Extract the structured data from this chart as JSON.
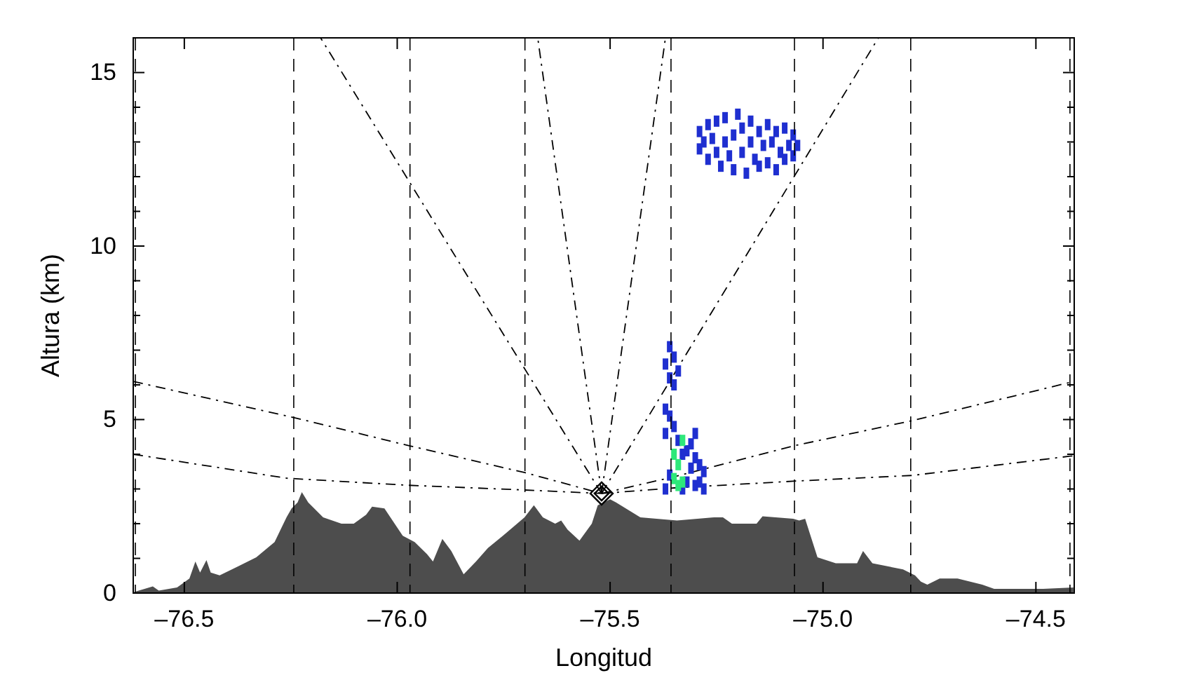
{
  "chart_data": {
    "type": "area",
    "xlabel": "Longitud",
    "ylabel": "Altura (km)",
    "xlim": [
      -76.62,
      -74.41
    ],
    "ylim": [
      0,
      16
    ],
    "xticks": [
      {
        "value": -76.5,
        "label": "–76.5"
      },
      {
        "value": -76.0,
        "label": "–76.0"
      },
      {
        "value": -75.5,
        "label": "–75.5"
      },
      {
        "value": -75.0,
        "label": "–75.0"
      },
      {
        "value": -74.5,
        "label": "–74.5"
      }
    ],
    "yticks": [
      0,
      {
        "value": 1,
        "label": null
      },
      {
        "value": 2,
        "label": null
      },
      {
        "value": 3,
        "label": null
      },
      {
        "value": 4,
        "label": null
      },
      5,
      {
        "value": 6,
        "label": null
      },
      {
        "value": 7,
        "label": null
      },
      {
        "value": 8,
        "label": null
      },
      {
        "value": 9,
        "label": null
      },
      10,
      {
        "value": 11,
        "label": null
      },
      {
        "value": 12,
        "label": null
      },
      {
        "value": 13,
        "label": null
      },
      {
        "value": 14,
        "label": null
      },
      15
    ],
    "grid": false,
    "ref_lines": [
      {
        "axis": "x",
        "value": -76.615,
        "color": "#000000",
        "line_style": "dashed"
      },
      {
        "axis": "x",
        "value": -76.243,
        "color": "#000000",
        "line_style": "dashed"
      },
      {
        "axis": "x",
        "value": -75.97,
        "color": "#000000",
        "line_style": "dashed"
      },
      {
        "axis": "x",
        "value": -75.7,
        "color": "#000000",
        "line_style": "dashed"
      },
      {
        "axis": "x",
        "value": -75.357,
        "color": "#000000",
        "line_style": "dashed"
      },
      {
        "axis": "x",
        "value": -75.067,
        "color": "#000000",
        "line_style": "dashed"
      },
      {
        "axis": "x",
        "value": -74.794,
        "color": "#000000",
        "line_style": "dashed"
      },
      {
        "axis": "x",
        "value": -74.42,
        "color": "#000000",
        "line_style": "dashed"
      }
    ],
    "series": [
      {
        "color": "#4d4d4d",
        "x": [
          -76.618,
          -76.574,
          -76.56,
          -76.517,
          -76.488,
          -76.474,
          -76.463,
          -76.448,
          -76.438,
          -76.417,
          -76.374,
          -76.331,
          -76.288,
          -76.26,
          -76.248,
          -76.234,
          -76.224,
          -76.209,
          -76.174,
          -76.131,
          -76.102,
          -76.073,
          -76.059,
          -76.03,
          -76.016,
          -75.987,
          -75.959,
          -75.93,
          -75.916,
          -75.894,
          -75.873,
          -75.844,
          -75.815,
          -75.787,
          -75.743,
          -75.701,
          -75.679,
          -75.658,
          -75.629,
          -75.615,
          -75.6,
          -75.572,
          -75.543,
          -75.529,
          -75.5,
          -75.486,
          -75.429,
          -75.343,
          -75.256,
          -75.235,
          -75.214,
          -75.156,
          -75.142,
          -75.07,
          -75.056,
          -75.042,
          -75.013,
          -74.97,
          -74.92,
          -74.906,
          -74.884,
          -74.812,
          -74.784,
          -74.77,
          -74.755,
          -74.726,
          -74.684,
          -74.626,
          -74.598,
          -74.483,
          -74.412
        ],
        "values": [
          0.03,
          0.19,
          0.07,
          0.16,
          0.42,
          0.91,
          0.59,
          0.95,
          0.59,
          0.51,
          0.77,
          1.03,
          1.47,
          2.18,
          2.44,
          2.61,
          2.91,
          2.61,
          2.18,
          2.0,
          2.0,
          2.26,
          2.49,
          2.44,
          2.18,
          1.65,
          1.47,
          1.12,
          0.91,
          1.56,
          1.21,
          0.54,
          0.91,
          1.3,
          1.74,
          2.18,
          2.53,
          2.18,
          2.0,
          2.09,
          1.83,
          1.51,
          2.0,
          2.53,
          2.7,
          2.61,
          2.18,
          2.09,
          2.18,
          2.18,
          2.0,
          2.0,
          2.21,
          2.14,
          2.09,
          2.14,
          1.03,
          0.86,
          0.86,
          1.21,
          0.86,
          0.68,
          0.51,
          0.33,
          0.24,
          0.42,
          0.42,
          0.24,
          0.12,
          0.12,
          0.16
        ]
      },
      {
        "type": "line",
        "color": "#000000",
        "line_style": "dashed",
        "x": [
          -76.62,
          -76.26,
          -75.98,
          -75.7,
          -75.52
        ],
        "values": [
          4.0,
          3.31,
          3.11,
          2.97,
          2.87
        ]
      },
      {
        "type": "line",
        "color": "#000000",
        "line_style": "dashed",
        "x": [
          -75.52,
          -75.35,
          -75.06,
          -74.79,
          -74.41
        ],
        "values": [
          2.87,
          3.03,
          3.23,
          3.39,
          3.96
        ]
      },
      {
        "type": "line",
        "color": "#000000",
        "line_style": "dashed",
        "x": [
          -76.62,
          -76.24,
          -75.97,
          -75.7,
          -75.52
        ],
        "values": [
          6.1,
          5.05,
          4.24,
          3.47,
          2.87
        ]
      },
      {
        "type": "line",
        "color": "#000000",
        "line_style": "dashed",
        "x": [
          -75.52,
          -75.35,
          -75.07,
          -74.79,
          -74.41
        ],
        "values": [
          2.87,
          3.35,
          4.24,
          4.97,
          6.1
        ]
      },
      {
        "type": "line",
        "color": "#000000",
        "line_style": "dashed",
        "x": [
          -75.52,
          -76.18
        ],
        "values": [
          2.87,
          16
        ]
      },
      {
        "type": "line",
        "color": "#000000",
        "line_style": "dashed",
        "x": [
          -75.52,
          -75.67
        ],
        "values": [
          2.87,
          16
        ]
      },
      {
        "type": "line",
        "color": "#000000",
        "line_style": "dashed",
        "x": [
          -75.52,
          -75.37
        ],
        "values": [
          2.87,
          16
        ]
      },
      {
        "type": "line",
        "color": "#000000",
        "line_style": "dashed",
        "x": [
          -75.52,
          -74.87
        ],
        "values": [
          2.87,
          16
        ]
      },
      {
        "type": "scatter",
        "marker": "square",
        "color": "#1f2fd0",
        "x": [
          -75.29,
          -75.29,
          -75.28,
          -75.27,
          -75.27,
          -75.26,
          -75.25,
          -75.25,
          -75.24,
          -75.23,
          -75.23,
          -75.22,
          -75.21,
          -75.21,
          -75.2,
          -75.19,
          -75.19,
          -75.18,
          -75.17,
          -75.17,
          -75.16,
          -75.15,
          -75.15,
          -75.14,
          -75.13,
          -75.13,
          -75.12,
          -75.11,
          -75.11,
          -75.1,
          -75.09,
          -75.09,
          -75.08,
          -75.07,
          -75.07,
          -75.06
        ],
        "values": [
          12.8,
          13.3,
          13.0,
          12.5,
          13.5,
          13.1,
          12.7,
          13.6,
          12.3,
          13.0,
          13.7,
          12.6,
          12.2,
          13.2,
          13.8,
          12.7,
          13.4,
          12.1,
          13.0,
          13.6,
          12.5,
          12.3,
          13.3,
          12.9,
          12.4,
          13.5,
          13.0,
          12.2,
          13.3,
          12.7,
          12.5,
          13.4,
          12.9,
          12.6,
          13.2,
          12.9
        ]
      },
      {
        "type": "scatter",
        "marker": "square",
        "color": "#1f2fd0",
        "x": [
          -75.37,
          -75.36,
          -75.36,
          -75.35,
          -75.35,
          -75.34,
          -75.37,
          -75.37,
          -75.36,
          -75.36,
          -75.37,
          -75.35,
          -75.32,
          -75.34,
          -75.33,
          -75.33,
          -75.32,
          -75.31,
          -75.31,
          -75.3,
          -75.3,
          -75.3,
          -75.29,
          -75.29,
          -75.28,
          -75.28
        ],
        "values": [
          6.6,
          6.2,
          7.1,
          6.0,
          6.8,
          6.4,
          5.3,
          4.6,
          5.1,
          3.4,
          3.0,
          4.8,
          4.1,
          4.4,
          3.0,
          4.0,
          3.2,
          3.6,
          4.3,
          3.1,
          3.9,
          4.6,
          3.2,
          3.7,
          3.0,
          3.5
        ]
      },
      {
        "type": "scatter",
        "marker": "square",
        "color": "#2ee87a",
        "x": [
          -75.35,
          -75.35,
          -75.34,
          -75.34,
          -75.33,
          -75.33
        ],
        "values": [
          3.3,
          4.0,
          3.1,
          3.7,
          4.4,
          3.2
        ]
      },
      {
        "type": "scatter",
        "marker": "diamond",
        "color": "#000000",
        "x": [
          -75.52
        ],
        "values": [
          2.87
        ]
      }
    ]
  }
}
